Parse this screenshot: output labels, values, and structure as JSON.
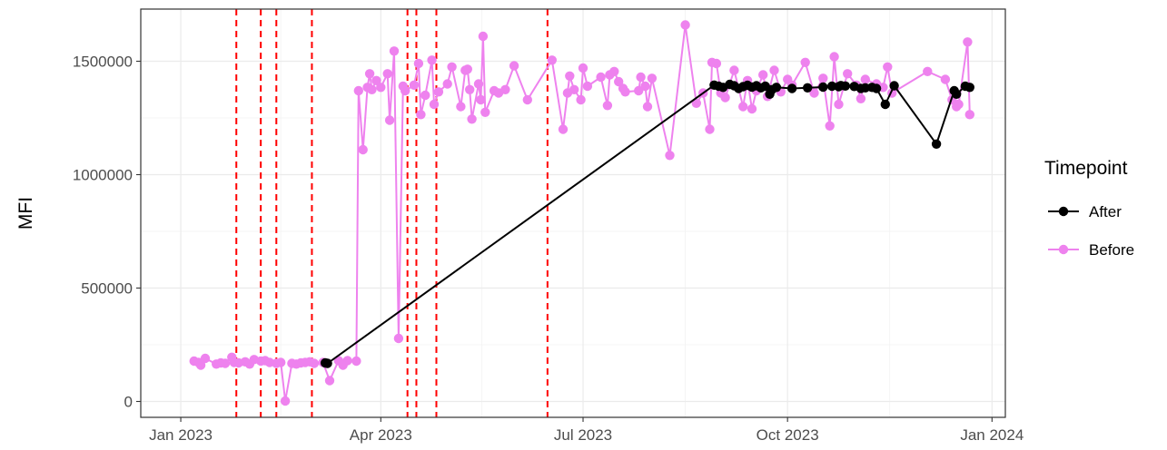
{
  "chart_data": {
    "type": "line",
    "title": "",
    "xlabel": "",
    "ylabel": "MFI",
    "x_range": [
      "2022-12-14",
      "2024-01-07"
    ],
    "ylim": [
      -70000,
      1730000
    ],
    "x_ticks": [
      {
        "date": "2023-01-01",
        "label": "Jan 2023"
      },
      {
        "date": "2023-04-01",
        "label": "Apr 2023"
      },
      {
        "date": "2023-07-01",
        "label": "Jul 2023"
      },
      {
        "date": "2023-10-01",
        "label": "Oct 2023"
      },
      {
        "date": "2024-01-01",
        "label": "Jan 2024"
      }
    ],
    "y_ticks": [
      {
        "value": 0,
        "label": "0"
      },
      {
        "value": 500000,
        "label": "500000"
      },
      {
        "value": 1000000,
        "label": "1000000"
      },
      {
        "value": 1500000,
        "label": "1500000"
      }
    ],
    "grid": true,
    "legend": {
      "title": "Timepoint",
      "position": "right"
    },
    "vlines": {
      "color": "#ff0000",
      "dates": [
        "2023-01-26",
        "2023-02-06",
        "2023-02-13",
        "2023-03-01",
        "2023-04-13",
        "2023-04-17",
        "2023-04-26",
        "2023-06-15"
      ]
    },
    "series": [
      {
        "name": "After",
        "color": "#000000",
        "points": [
          [
            "2023-03-07",
            170000
          ],
          [
            "2023-03-08",
            168000
          ],
          [
            "2023-08-29",
            1395000
          ],
          [
            "2023-08-31",
            1390000
          ],
          [
            "2023-09-02",
            1385000
          ],
          [
            "2023-09-05",
            1398000
          ],
          [
            "2023-09-07",
            1392000
          ],
          [
            "2023-09-09",
            1380000
          ],
          [
            "2023-09-11",
            1388000
          ],
          [
            "2023-09-13",
            1394000
          ],
          [
            "2023-09-15",
            1386000
          ],
          [
            "2023-09-17",
            1392000
          ],
          [
            "2023-09-19",
            1383000
          ],
          [
            "2023-09-21",
            1390000
          ],
          [
            "2023-09-23",
            1355000
          ],
          [
            "2023-09-24",
            1375000
          ],
          [
            "2023-09-26",
            1385000
          ],
          [
            "2023-10-03",
            1380000
          ],
          [
            "2023-10-10",
            1383000
          ],
          [
            "2023-10-17",
            1386000
          ],
          [
            "2023-10-21",
            1390000
          ],
          [
            "2023-10-24",
            1388000
          ],
          [
            "2023-10-25",
            1393000
          ],
          [
            "2023-10-27",
            1391000
          ],
          [
            "2023-10-31",
            1389000
          ],
          [
            "2023-11-03",
            1380000
          ],
          [
            "2023-11-05",
            1383000
          ],
          [
            "2023-11-08",
            1385000
          ],
          [
            "2023-11-10",
            1380000
          ],
          [
            "2023-11-14",
            1310000
          ],
          [
            "2023-11-18",
            1392000
          ],
          [
            "2023-12-07",
            1135000
          ],
          [
            "2023-12-15",
            1370000
          ],
          [
            "2023-12-16",
            1355000
          ],
          [
            "2023-12-20",
            1390000
          ],
          [
            "2023-12-22",
            1385000
          ]
        ]
      },
      {
        "name": "Before",
        "color": "#ee82ee",
        "points": [
          [
            "2023-01-07",
            178000
          ],
          [
            "2023-01-09",
            172000
          ],
          [
            "2023-01-10",
            160000
          ],
          [
            "2023-01-12",
            190000
          ],
          [
            "2023-01-17",
            165000
          ],
          [
            "2023-01-19",
            170000
          ],
          [
            "2023-01-21",
            168000
          ],
          [
            "2023-01-24",
            195000
          ],
          [
            "2023-01-25",
            172000
          ],
          [
            "2023-01-27",
            170000
          ],
          [
            "2023-01-30",
            175000
          ],
          [
            "2023-02-01",
            165000
          ],
          [
            "2023-02-03",
            185000
          ],
          [
            "2023-02-06",
            178000
          ],
          [
            "2023-02-08",
            180000
          ],
          [
            "2023-02-10",
            172000
          ],
          [
            "2023-02-13",
            168000
          ],
          [
            "2023-02-15",
            172000
          ],
          [
            "2023-02-17",
            2000
          ],
          [
            "2023-02-20",
            168000
          ],
          [
            "2023-02-22",
            165000
          ],
          [
            "2023-02-24",
            170000
          ],
          [
            "2023-02-26",
            172000
          ],
          [
            "2023-02-28",
            175000
          ],
          [
            "2023-03-02",
            168000
          ],
          [
            "2023-03-06",
            172000
          ],
          [
            "2023-03-09",
            92000
          ],
          [
            "2023-03-13",
            180000
          ],
          [
            "2023-03-15",
            160000
          ],
          [
            "2023-03-17",
            180000
          ],
          [
            "2023-03-21",
            178000
          ],
          [
            "2023-03-22",
            1370000
          ],
          [
            "2023-03-24",
            1110000
          ],
          [
            "2023-03-26",
            1385000
          ],
          [
            "2023-03-27",
            1445000
          ],
          [
            "2023-03-28",
            1375000
          ],
          [
            "2023-03-30",
            1415000
          ],
          [
            "2023-04-01",
            1385000
          ],
          [
            "2023-04-04",
            1445000
          ],
          [
            "2023-04-05",
            1240000
          ],
          [
            "2023-04-07",
            1545000
          ],
          [
            "2023-04-09",
            278000
          ],
          [
            "2023-04-11",
            1390000
          ],
          [
            "2023-04-12",
            1370000
          ],
          [
            "2023-04-16",
            1395000
          ],
          [
            "2023-04-18",
            1490000
          ],
          [
            "2023-04-19",
            1265000
          ],
          [
            "2023-04-21",
            1350000
          ],
          [
            "2023-04-24",
            1505000
          ],
          [
            "2023-04-25",
            1310000
          ],
          [
            "2023-04-27",
            1365000
          ],
          [
            "2023-05-01",
            1400000
          ],
          [
            "2023-05-03",
            1475000
          ],
          [
            "2023-05-07",
            1300000
          ],
          [
            "2023-05-09",
            1460000
          ],
          [
            "2023-05-10",
            1465000
          ],
          [
            "2023-05-11",
            1375000
          ],
          [
            "2023-05-12",
            1245000
          ],
          [
            "2023-05-15",
            1400000
          ],
          [
            "2023-05-16",
            1330000
          ],
          [
            "2023-05-17",
            1610000
          ],
          [
            "2023-05-18",
            1275000
          ],
          [
            "2023-05-22",
            1370000
          ],
          [
            "2023-05-24",
            1360000
          ],
          [
            "2023-05-27",
            1375000
          ],
          [
            "2023-05-31",
            1480000
          ],
          [
            "2023-06-06",
            1330000
          ],
          [
            "2023-06-17",
            1505000
          ],
          [
            "2023-06-22",
            1200000
          ],
          [
            "2023-06-24",
            1360000
          ],
          [
            "2023-06-25",
            1435000
          ],
          [
            "2023-06-27",
            1375000
          ],
          [
            "2023-06-30",
            1330000
          ],
          [
            "2023-07-01",
            1470000
          ],
          [
            "2023-07-03",
            1390000
          ],
          [
            "2023-07-09",
            1430000
          ],
          [
            "2023-07-12",
            1305000
          ],
          [
            "2023-07-13",
            1440000
          ],
          [
            "2023-07-15",
            1455000
          ],
          [
            "2023-07-17",
            1410000
          ],
          [
            "2023-07-19",
            1380000
          ],
          [
            "2023-07-20",
            1365000
          ],
          [
            "2023-07-26",
            1370000
          ],
          [
            "2023-07-27",
            1430000
          ],
          [
            "2023-07-29",
            1390000
          ],
          [
            "2023-07-30",
            1300000
          ],
          [
            "2023-08-01",
            1425000
          ],
          [
            "2023-08-09",
            1085000
          ],
          [
            "2023-08-16",
            1660000
          ],
          [
            "2023-08-21",
            1315000
          ],
          [
            "2023-08-24",
            1360000
          ],
          [
            "2023-08-27",
            1200000
          ],
          [
            "2023-08-28",
            1495000
          ],
          [
            "2023-08-30",
            1490000
          ],
          [
            "2023-09-01",
            1360000
          ],
          [
            "2023-09-03",
            1340000
          ],
          [
            "2023-09-07",
            1460000
          ],
          [
            "2023-09-11",
            1300000
          ],
          [
            "2023-09-13",
            1415000
          ],
          [
            "2023-09-15",
            1290000
          ],
          [
            "2023-09-17",
            1370000
          ],
          [
            "2023-09-20",
            1440000
          ],
          [
            "2023-09-22",
            1345000
          ],
          [
            "2023-09-25",
            1460000
          ],
          [
            "2023-09-28",
            1365000
          ],
          [
            "2023-10-01",
            1420000
          ],
          [
            "2023-10-03",
            1395000
          ],
          [
            "2023-10-09",
            1495000
          ],
          [
            "2023-10-13",
            1360000
          ],
          [
            "2023-10-17",
            1425000
          ],
          [
            "2023-10-20",
            1215000
          ],
          [
            "2023-10-22",
            1520000
          ],
          [
            "2023-10-24",
            1310000
          ],
          [
            "2023-10-28",
            1445000
          ],
          [
            "2023-11-01",
            1395000
          ],
          [
            "2023-11-03",
            1335000
          ],
          [
            "2023-11-05",
            1420000
          ],
          [
            "2023-11-10",
            1400000
          ],
          [
            "2023-11-13",
            1385000
          ],
          [
            "2023-11-15",
            1475000
          ],
          [
            "2023-11-17",
            1360000
          ],
          [
            "2023-12-03",
            1455000
          ],
          [
            "2023-12-11",
            1420000
          ],
          [
            "2023-12-14",
            1330000
          ],
          [
            "2023-12-16",
            1300000
          ],
          [
            "2023-12-17",
            1310000
          ],
          [
            "2023-12-21",
            1585000
          ],
          [
            "2023-12-22",
            1265000
          ]
        ]
      }
    ]
  }
}
